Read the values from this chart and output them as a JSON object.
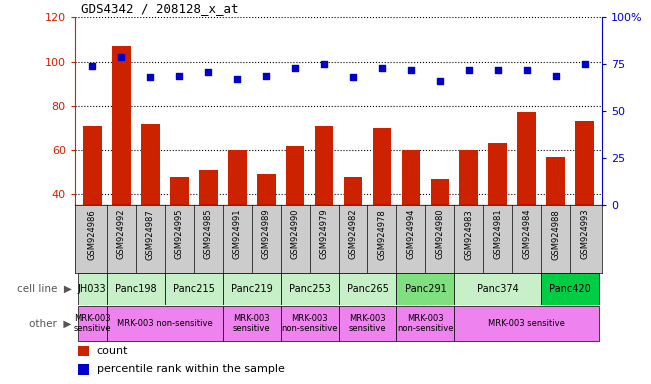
{
  "title": "GDS4342 / 208128_x_at",
  "samples": [
    "GSM924986",
    "GSM924992",
    "GSM924987",
    "GSM924995",
    "GSM924985",
    "GSM924991",
    "GSM924989",
    "GSM924990",
    "GSM924979",
    "GSM924982",
    "GSM924978",
    "GSM924994",
    "GSM924980",
    "GSM924983",
    "GSM924981",
    "GSM924984",
    "GSM924988",
    "GSM924993"
  ],
  "counts": [
    71,
    107,
    72,
    48,
    51,
    60,
    49,
    62,
    71,
    48,
    70,
    60,
    47,
    60,
    63,
    77,
    57,
    73
  ],
  "percentiles": [
    74,
    79,
    68,
    69,
    71,
    67,
    69,
    73,
    75,
    68,
    73,
    72,
    66,
    72,
    72,
    72,
    69,
    75
  ],
  "cell_line_per_sample": [
    "JH033",
    "Panc198",
    "Panc198",
    "Panc215",
    "Panc215",
    "Panc219",
    "Panc219",
    "Panc253",
    "Panc253",
    "Panc265",
    "Panc265",
    "Panc291",
    "Panc291",
    "Panc374",
    "Panc374",
    "Panc374",
    "Panc420",
    "Panc420"
  ],
  "cell_line_colors": {
    "JH033": "#c8f0c8",
    "Panc198": "#c8f0c8",
    "Panc215": "#c8f0c8",
    "Panc219": "#c8f0c8",
    "Panc253": "#c8f0c8",
    "Panc265": "#c8f0c8",
    "Panc291": "#80e080",
    "Panc374": "#c8f0c8",
    "Panc420": "#00cc44"
  },
  "other_per_sample": [
    "s",
    "ns",
    "ns",
    "ns",
    "ns",
    "s",
    "s",
    "ns",
    "ns",
    "s",
    "s",
    "ns",
    "ns",
    "s",
    "s",
    "s",
    "s",
    "s"
  ],
  "other_labels": {
    "s": "MRK-003\nsensitive",
    "ns": "MRK-003\nnon-sensitive"
  },
  "other_display": {
    "0-0": "MRK-003\nsensitive",
    "1-4": "MRK-003 non-sensitive",
    "5-6": "MRK-003\nsensitive",
    "7-8": "MRK-003\nnon-sensitive",
    "9-10": "MRK-003\nsensitive",
    "11-12": "MRK-003\nnon-sensitive",
    "13-17": "MRK-003 sensitive"
  },
  "other_color": "#ee82ee",
  "ylim_left": [
    35,
    120
  ],
  "ylim_right": [
    0,
    100
  ],
  "yticks_left": [
    40,
    60,
    80,
    100,
    120
  ],
  "yticks_right": [
    0,
    25,
    50,
    75,
    100
  ],
  "bar_color": "#cc2200",
  "dot_color": "#0000cc",
  "tick_label_color_left": "#cc2200",
  "tick_label_color_right": "#0000cc",
  "sample_bg_color": "#cccccc",
  "legend_items": [
    {
      "label": "count",
      "color": "#cc2200"
    },
    {
      "label": "percentile rank within the sample",
      "color": "#0000cc"
    }
  ]
}
